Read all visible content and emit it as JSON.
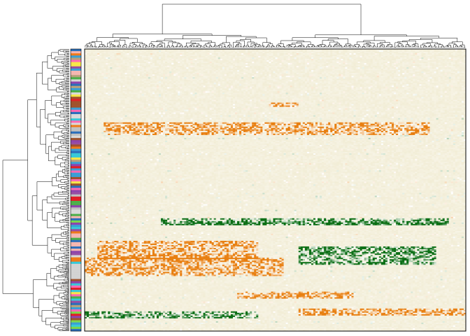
{
  "chart_data": {
    "type": "heatmap",
    "title": "",
    "xlabel": "",
    "ylabel": "",
    "row_dendrogram": true,
    "column_dendrogram": true,
    "row_annotation_sidebar": true,
    "legend": "none",
    "approx_rows": 400,
    "approx_columns": 540,
    "colors": {
      "high": "#e87f10",
      "mid": "#ffffff",
      "low": "#0a6e14",
      "background": "#f2edd6",
      "frame": "#000000",
      "dendrogram": "#000000"
    },
    "sidebar_palette": [
      "#3a9fd6",
      "#f07a1a",
      "#e21f26",
      "#8e44ad",
      "#38c9d8",
      "#f5b7b1",
      "#7cd64b",
      "#c0c0c0",
      "#f7e64a",
      "#2c6fbb",
      "#b8a17a",
      "#ff69b4",
      "#a0522d",
      "#d9d9d9",
      "#4daf4a",
      "#984ea3"
    ],
    "highlight_blocks": [
      {
        "rows": [
          0.74,
          0.8
        ],
        "columns": [
          0.0,
          0.52
        ],
        "tone": "high"
      },
      {
        "rows": [
          0.68,
          0.74
        ],
        "columns": [
          0.03,
          0.45
        ],
        "tone": "high"
      },
      {
        "rows": [
          0.7,
          0.76
        ],
        "columns": [
          0.56,
          0.92
        ],
        "tone": "low"
      },
      {
        "rows": [
          0.19,
          0.2
        ],
        "columns": [
          0.48,
          0.56
        ],
        "tone": "high"
      },
      {
        "rows": [
          0.93,
          0.95
        ],
        "columns": [
          0.0,
          0.45
        ],
        "tone": "low"
      },
      {
        "rows": [
          0.92,
          0.94
        ],
        "columns": [
          0.56,
          1.0
        ],
        "tone": "high"
      },
      {
        "rows": [
          0.86,
          0.88
        ],
        "columns": [
          0.4,
          0.7
        ],
        "tone": "high"
      },
      {
        "rows": [
          0.26,
          0.3
        ],
        "columns": [
          0.05,
          0.9
        ],
        "tone": "high"
      },
      {
        "rows": [
          0.6,
          0.62
        ],
        "columns": [
          0.2,
          0.95
        ],
        "tone": "low"
      }
    ]
  }
}
